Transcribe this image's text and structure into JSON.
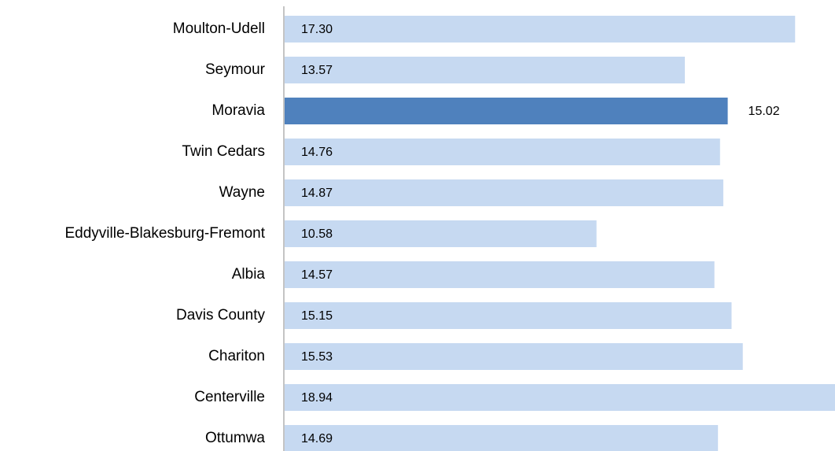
{
  "chart_data": {
    "type": "hbar",
    "categories": [
      "Moulton-Udell",
      "Seymour",
      "Moravia",
      "Twin Cedars",
      "Wayne",
      "Eddyville-Blakesburg-Fremont",
      "Albia",
      "Davis County",
      "Chariton",
      "Centerville",
      "Ottumwa"
    ],
    "values": [
      17.3,
      13.57,
      15.02,
      14.76,
      14.87,
      10.58,
      14.57,
      15.15,
      15.53,
      18.94,
      14.69
    ],
    "value_labels": [
      "17.30",
      "13.57",
      "15.02",
      "14.76",
      "14.87",
      "10.58",
      "14.57",
      "15.15",
      "15.53",
      "18.94",
      "14.69"
    ],
    "colors": [
      "#c6d9f1",
      "#c6d9f1",
      "#4f81bd",
      "#c6d9f1",
      "#c6d9f1",
      "#c6d9f1",
      "#c6d9f1",
      "#c6d9f1",
      "#c6d9f1",
      "#c6d9f1",
      "#c6d9f1"
    ],
    "xlim": [
      0,
      18.65
    ]
  }
}
